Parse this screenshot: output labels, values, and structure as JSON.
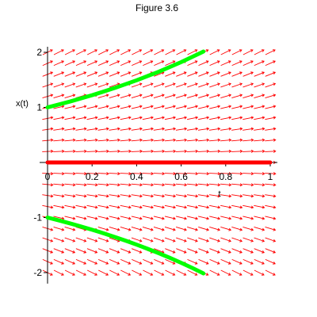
{
  "chart_data": {
    "type": "line",
    "title": "Figure 3.6",
    "xlabel": "t",
    "ylabel": "x(t)",
    "xlim": [
      0,
      1
    ],
    "ylim": [
      -2.2,
      2.1
    ],
    "x_ticks": [
      {
        "value": 0,
        "label": "0"
      },
      {
        "value": 0.2,
        "label": "0.2"
      },
      {
        "value": 0.4,
        "label": "0.4"
      },
      {
        "value": 0.6,
        "label": "0.6"
      },
      {
        "value": 0.8,
        "label": "0.8"
      },
      {
        "value": 1,
        "label": "1"
      }
    ],
    "y_ticks": [
      {
        "value": 2,
        "label": "2"
      },
      {
        "value": 1,
        "label": "1"
      },
      {
        "value": -1,
        "label": "-1"
      },
      {
        "value": -2,
        "label": "-2"
      }
    ],
    "direction_field": {
      "equation": "x' = x",
      "t_values": [
        0,
        0.05,
        0.1,
        0.15,
        0.2,
        0.25,
        0.3,
        0.35,
        0.4,
        0.45,
        0.5,
        0.55,
        0.6,
        0.65,
        0.7,
        0.75,
        0.8,
        0.85,
        0.9,
        0.95,
        1.0
      ],
      "x_values": [
        2.0,
        1.8,
        1.6,
        1.4,
        1.2,
        1.0,
        0.8,
        0.6,
        0.4,
        0.2,
        0.0,
        -0.2,
        -0.4,
        -0.6,
        -0.8,
        -1.0,
        -1.2,
        -1.4,
        -1.6,
        -1.8,
        -2.0
      ],
      "color": "#ff0000"
    },
    "series": [
      {
        "color": "#00ff00",
        "points": [
          [
            0,
            1.0
          ],
          [
            0.1,
            1.105
          ],
          [
            0.2,
            1.221
          ],
          [
            0.3,
            1.35
          ],
          [
            0.4,
            1.492
          ],
          [
            0.5,
            1.649
          ],
          [
            0.6,
            1.822
          ],
          [
            0.7,
            2.014
          ]
        ]
      },
      {
        "color": "#ff0000",
        "points": [
          [
            0,
            0
          ],
          [
            0.2,
            0
          ],
          [
            0.4,
            0
          ],
          [
            0.6,
            0
          ],
          [
            0.8,
            0
          ],
          [
            1.0,
            0
          ]
        ]
      },
      {
        "color": "#00ff00",
        "points": [
          [
            0,
            -1.0
          ],
          [
            0.05,
            -1.051
          ],
          [
            0.1,
            -1.105
          ],
          [
            0.15,
            -1.162
          ],
          [
            0.2,
            -1.221
          ],
          [
            0.25,
            -1.284
          ],
          [
            0.3,
            -1.35
          ],
          [
            0.35,
            -1.419
          ],
          [
            0.4,
            -1.492
          ],
          [
            0.45,
            -1.568
          ],
          [
            0.5,
            -1.649
          ],
          [
            0.55,
            -1.733
          ],
          [
            0.6,
            -1.822
          ],
          [
            0.65,
            -1.916
          ],
          [
            0.7,
            -2.014
          ]
        ]
      }
    ],
    "grid": false,
    "legend": "none"
  }
}
